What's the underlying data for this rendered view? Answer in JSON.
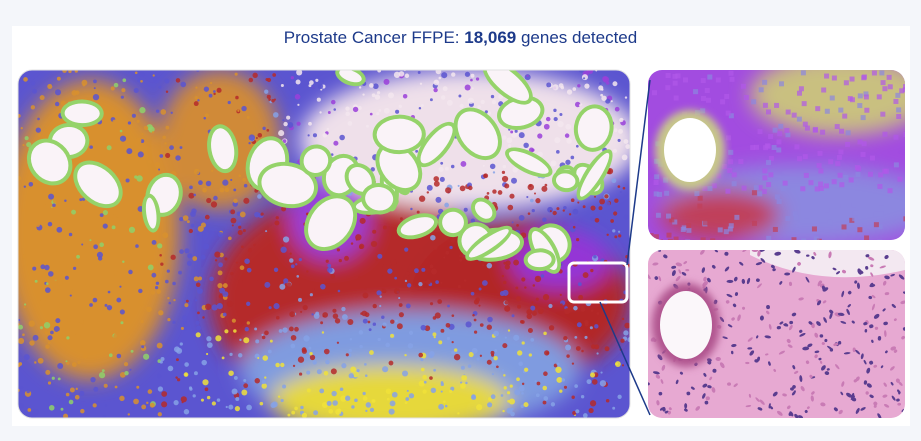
{
  "header": {
    "title_prefix": "Prostate Cancer FFPE: ",
    "title_count": "18,069",
    "title_suffix": " genes detected"
  }
}
